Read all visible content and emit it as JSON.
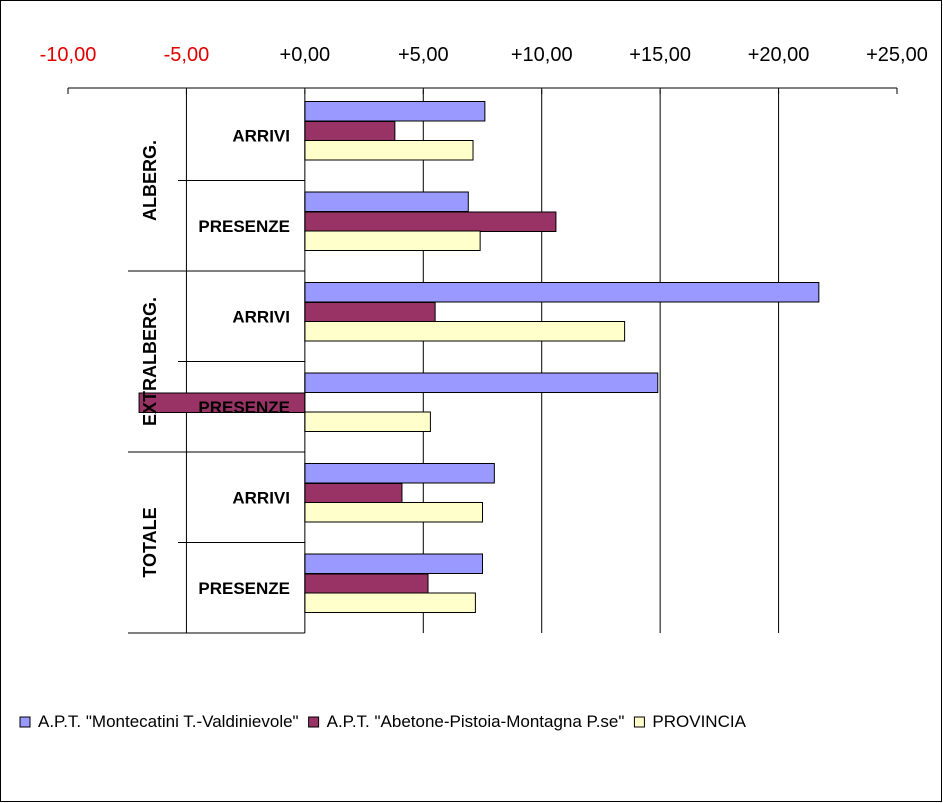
{
  "chart_data": {
    "type": "bar",
    "orientation": "horizontal",
    "title": "",
    "xlim": [
      -10,
      25
    ],
    "x_ticks": [
      "-10,00",
      "-5,00",
      "+0,00",
      "+5,00",
      "+10,00",
      "+15,00",
      "+20,00",
      "+25,00"
    ],
    "x_tick_values": [
      -10,
      -5,
      0,
      5,
      10,
      15,
      20,
      25
    ],
    "negative_tick_color": "#e00000",
    "positive_tick_color": "#000000",
    "grid": true,
    "legend_position": "bottom",
    "groups": [
      {
        "label": "ALBERG.",
        "categories": [
          "ARRIVI",
          "PRESENZE"
        ]
      },
      {
        "label": "EXTRALBERG.",
        "categories": [
          "ARRIVI",
          "PRESENZE"
        ]
      },
      {
        "label": "TOTALE",
        "categories": [
          "ARRIVI",
          "PRESENZE"
        ]
      }
    ],
    "series": [
      {
        "name": "A.P.T. \"Montecatini T.-Valdinievole\"",
        "color": "#9999ff",
        "values": [
          7.6,
          6.9,
          21.7,
          14.9,
          8.0,
          7.5
        ]
      },
      {
        "name": "A.P.T. \"Abetone-Pistoia-Montagna P.se\"",
        "color": "#993366",
        "values": [
          3.8,
          10.6,
          5.5,
          -7.0,
          4.1,
          5.2
        ]
      },
      {
        "name": "PROVINCIA",
        "color": "#ffffcc",
        "values": [
          7.1,
          7.4,
          13.5,
          5.3,
          7.5,
          7.2
        ]
      }
    ]
  }
}
